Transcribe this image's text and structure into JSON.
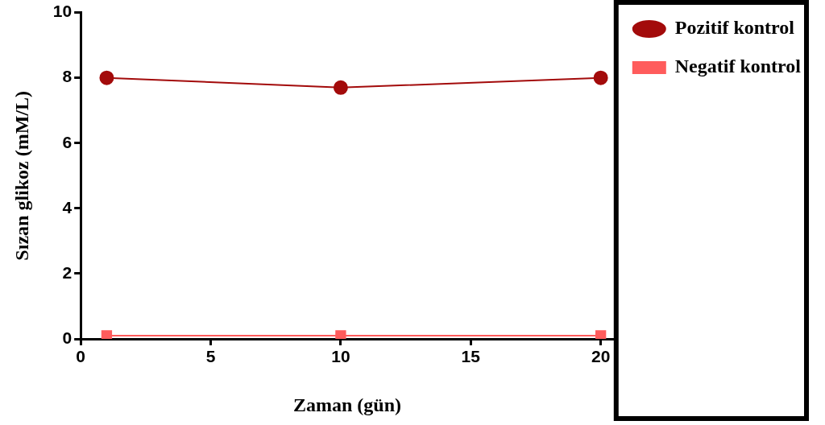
{
  "chart_data": {
    "type": "line",
    "xlabel": "Zaman (gün)",
    "ylabel": "Sızan glikoz (mM/L)",
    "x": [
      1,
      10,
      20
    ],
    "series": [
      {
        "name": "Pozitif kontrol",
        "color": "#a30b0b",
        "marker": "circle",
        "values": [
          8.0,
          7.7,
          8.0
        ]
      },
      {
        "name": "Negatif kontrol",
        "color": "#ff5c5c",
        "marker": "square",
        "values": [
          0.1,
          0.1,
          0.1
        ]
      }
    ],
    "xlim": [
      0,
      20.5
    ],
    "xticks": [
      0,
      5,
      10,
      15,
      20
    ],
    "ylim": [
      0,
      10
    ],
    "yticks": [
      0,
      2,
      4,
      6,
      8,
      10
    ],
    "grid": false,
    "legend": "top right",
    "line_style": "solid"
  }
}
